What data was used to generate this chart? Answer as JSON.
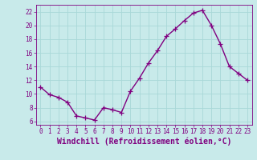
{
  "x": [
    0,
    1,
    2,
    3,
    4,
    5,
    6,
    7,
    8,
    9,
    10,
    11,
    12,
    13,
    14,
    15,
    16,
    17,
    18,
    19,
    20,
    21,
    22,
    23
  ],
  "y": [
    11.0,
    9.9,
    9.5,
    8.8,
    6.8,
    6.5,
    6.2,
    8.0,
    7.7,
    7.3,
    10.4,
    12.3,
    14.5,
    16.3,
    18.4,
    19.5,
    20.7,
    21.8,
    22.2,
    20.0,
    17.3,
    14.0,
    13.0,
    12.0
  ],
  "line_color": "#800080",
  "marker": "+",
  "markersize": 4,
  "linewidth": 1.0,
  "xlabel": "Windchill (Refroidissement éolien,°C)",
  "ylim": [
    5.5,
    23
  ],
  "xlim": [
    -0.5,
    23.5
  ],
  "yticks": [
    6,
    8,
    10,
    12,
    14,
    16,
    18,
    20,
    22
  ],
  "xticks": [
    0,
    1,
    2,
    3,
    4,
    5,
    6,
    7,
    8,
    9,
    10,
    11,
    12,
    13,
    14,
    15,
    16,
    17,
    18,
    19,
    20,
    21,
    22,
    23
  ],
  "grid_color": "#a8d8d8",
  "background_color": "#c8eaea",
  "tick_fontsize": 5.5,
  "xlabel_fontsize": 7.0,
  "label_color": "#800080"
}
